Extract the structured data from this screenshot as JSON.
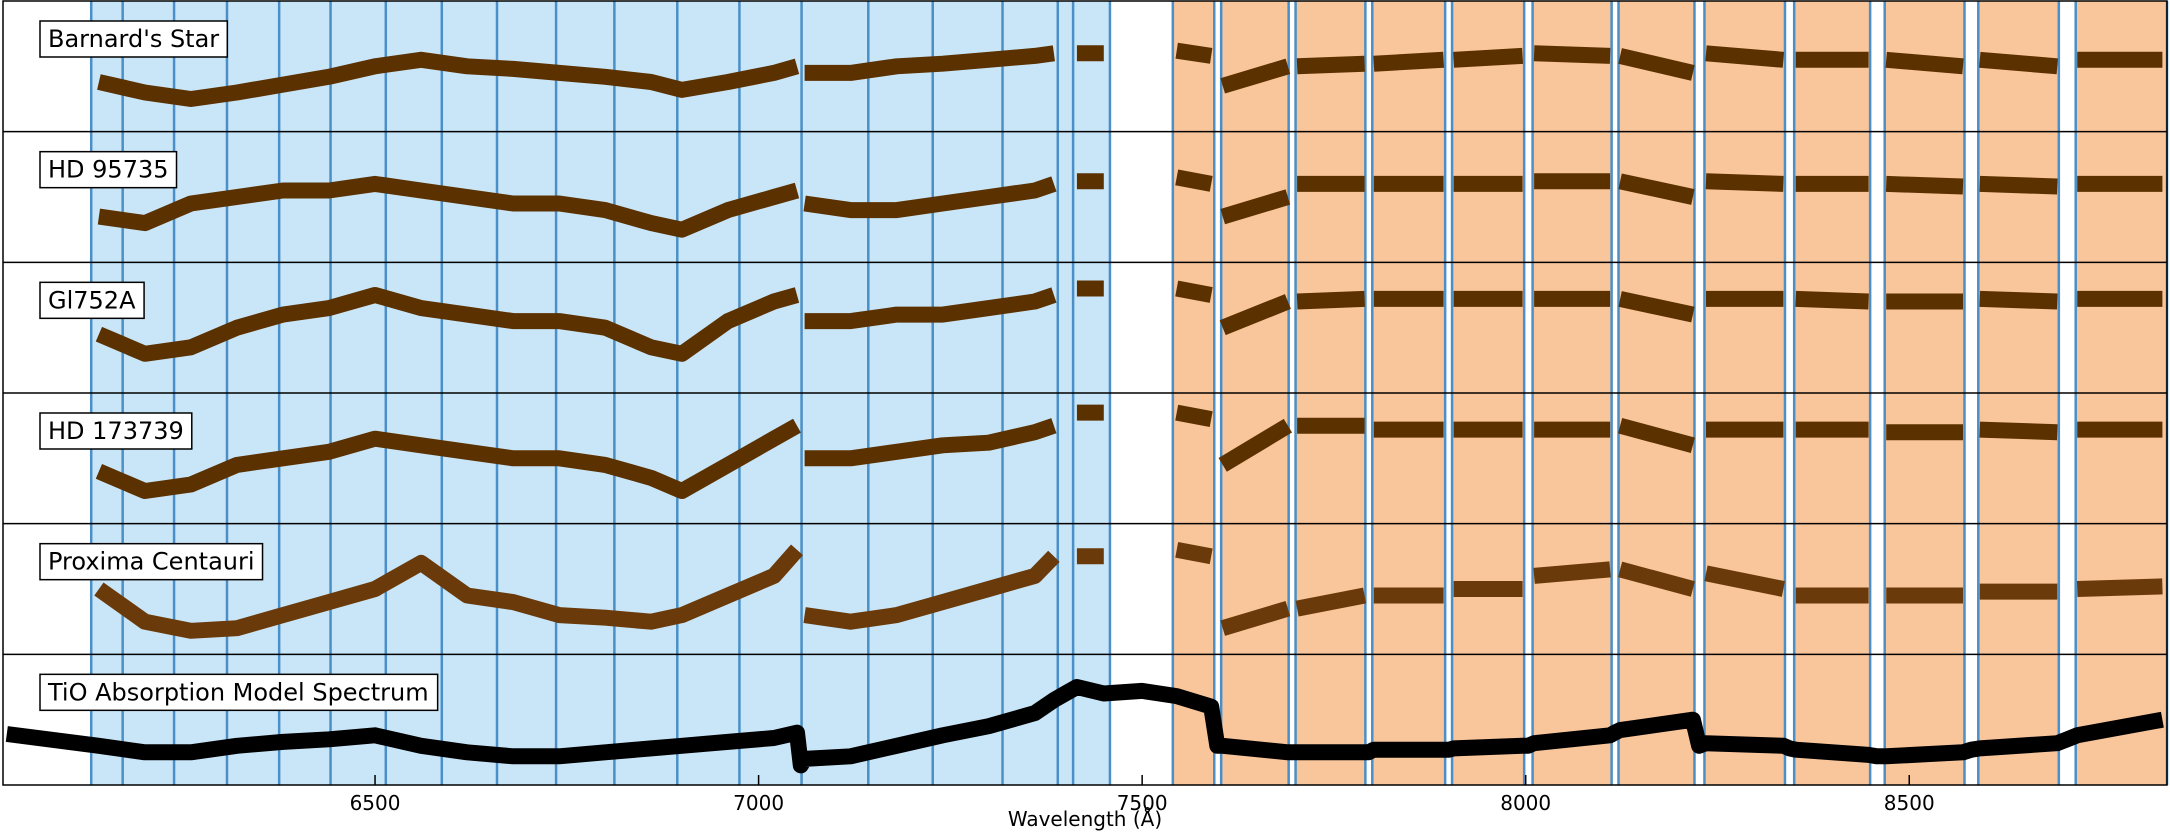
{
  "chart_data": {
    "type": "line",
    "x_label": "Wavelength (Å)",
    "xlim": [
      6015,
      8836
    ],
    "xticks": [
      6500,
      7000,
      7500,
      8000,
      8500
    ],
    "ylim": [
      0,
      1
    ],
    "blue_region": [
      6130,
      7458
    ],
    "blue_color": "#c9e6f8",
    "edge_color": "#4a8fc7",
    "blue_edges": [
      6130,
      6171,
      6238,
      6307,
      6375,
      6442,
      6514,
      6587,
      6659,
      6736,
      6812,
      6894,
      6975,
      7056,
      7143,
      7227,
      7318,
      7390,
      7410,
      7458
    ],
    "orange_color": "#f9c59b",
    "orange_regions": [
      [
        7540,
        7594
      ],
      [
        7603,
        7691
      ],
      [
        7700,
        7791
      ],
      [
        7800,
        7895
      ],
      [
        7904,
        7998
      ],
      [
        8009,
        8112
      ],
      [
        8121,
        8220
      ],
      [
        8233,
        8338
      ],
      [
        8350,
        8449
      ],
      [
        8468,
        8572
      ],
      [
        8590,
        8695
      ],
      [
        8717,
        8836
      ]
    ],
    "x": [
      6020,
      6140,
      6200,
      6260,
      6320,
      6380,
      6440,
      6500,
      6560,
      6620,
      6680,
      6740,
      6800,
      6860,
      6900,
      6960,
      7020,
      7050,
      7055,
      7060,
      7120,
      7180,
      7240,
      7300,
      7360,
      7385,
      7400,
      7415,
      7450,
      7500,
      7545,
      7590,
      7598,
      7605,
      7690,
      7695,
      7702,
      7790,
      7795,
      7802,
      7893,
      7900,
      7906,
      7996,
      8003,
      8011,
      8110,
      8116,
      8123,
      8218,
      8226,
      8235,
      8336,
      8344,
      8352,
      8447,
      8458,
      8470,
      8570,
      8581,
      8592,
      8693,
      8706,
      8719,
      8830
    ],
    "series": [
      {
        "name": "Barnard's Star",
        "color": "#5c3100",
        "values": [
          null,
          0.38,
          0.3,
          0.25,
          0.3,
          0.36,
          0.42,
          0.5,
          0.55,
          0.5,
          0.48,
          0.45,
          0.42,
          0.38,
          0.32,
          0.38,
          0.45,
          0.5,
          null,
          0.45,
          0.45,
          0.5,
          0.52,
          0.55,
          0.58,
          0.6,
          null,
          0.6,
          0.6,
          null,
          0.62,
          0.58,
          null,
          0.35,
          0.5,
          null,
          0.5,
          0.52,
          null,
          0.52,
          0.55,
          null,
          0.55,
          0.58,
          null,
          0.6,
          0.58,
          null,
          0.58,
          0.45,
          null,
          0.6,
          0.55,
          null,
          0.55,
          0.55,
          null,
          0.55,
          0.5,
          null,
          0.55,
          0.5,
          null,
          0.55,
          0.55
        ]
      },
      {
        "name": "HD 95735",
        "color": "#5c3100",
        "values": [
          null,
          0.35,
          0.3,
          0.45,
          0.5,
          0.55,
          0.55,
          0.6,
          0.55,
          0.5,
          0.45,
          0.45,
          0.4,
          0.3,
          0.25,
          0.4,
          0.5,
          0.55,
          null,
          0.45,
          0.4,
          0.4,
          0.45,
          0.5,
          0.55,
          0.6,
          null,
          0.62,
          0.62,
          null,
          0.65,
          0.6,
          null,
          0.35,
          0.5,
          null,
          0.6,
          0.6,
          null,
          0.6,
          0.6,
          null,
          0.6,
          0.6,
          null,
          0.62,
          0.62,
          null,
          0.62,
          0.5,
          null,
          0.62,
          0.6,
          null,
          0.6,
          0.6,
          null,
          0.6,
          0.58,
          null,
          0.6,
          0.58,
          null,
          0.6,
          0.6
        ]
      },
      {
        "name": "Gl752A",
        "color": "#5c3100",
        "values": [
          null,
          0.45,
          0.3,
          0.35,
          0.5,
          0.6,
          0.65,
          0.75,
          0.65,
          0.6,
          0.55,
          0.55,
          0.5,
          0.35,
          0.3,
          0.55,
          0.7,
          0.75,
          null,
          0.55,
          0.55,
          0.6,
          0.6,
          0.65,
          0.7,
          0.75,
          null,
          0.8,
          0.8,
          null,
          0.8,
          0.75,
          null,
          0.5,
          0.7,
          null,
          0.7,
          0.72,
          null,
          0.72,
          0.72,
          null,
          0.72,
          0.72,
          null,
          0.72,
          0.72,
          null,
          0.72,
          0.6,
          null,
          0.72,
          0.72,
          null,
          0.72,
          0.7,
          null,
          0.7,
          0.7,
          null,
          0.72,
          0.7,
          null,
          0.72,
          0.72
        ]
      },
      {
        "name": "HD 173739",
        "color": "#5c3100",
        "values": [
          null,
          0.4,
          0.25,
          0.3,
          0.45,
          0.5,
          0.55,
          0.65,
          0.6,
          0.55,
          0.5,
          0.5,
          0.45,
          0.35,
          0.25,
          0.45,
          0.65,
          0.75,
          null,
          0.5,
          0.5,
          0.55,
          0.6,
          0.62,
          0.7,
          0.75,
          null,
          0.85,
          0.85,
          null,
          0.85,
          0.8,
          null,
          0.45,
          0.75,
          null,
          0.75,
          0.75,
          null,
          0.72,
          0.72,
          null,
          0.72,
          0.72,
          null,
          0.72,
          0.72,
          null,
          0.75,
          0.6,
          null,
          0.72,
          0.72,
          null,
          0.72,
          0.72,
          null,
          0.7,
          0.7,
          null,
          0.72,
          0.7,
          null,
          0.72,
          0.72
        ]
      },
      {
        "name": "Proxima Centauri",
        "color": "#6b3a0a",
        "values": [
          null,
          0.5,
          0.25,
          0.18,
          0.2,
          0.3,
          0.4,
          0.5,
          0.7,
          0.45,
          0.4,
          0.3,
          0.28,
          0.25,
          0.3,
          0.45,
          0.6,
          0.8,
          null,
          0.3,
          0.25,
          0.3,
          0.4,
          0.5,
          0.6,
          0.75,
          null,
          0.75,
          0.75,
          null,
          0.8,
          0.75,
          null,
          0.2,
          0.35,
          null,
          0.35,
          0.45,
          null,
          0.45,
          0.45,
          null,
          0.5,
          0.5,
          null,
          0.6,
          0.65,
          null,
          0.65,
          0.5,
          null,
          0.62,
          0.5,
          null,
          0.45,
          0.45,
          null,
          0.45,
          0.45,
          null,
          0.48,
          0.48,
          null,
          0.5,
          0.52
        ]
      },
      {
        "name": "TiO Absorption Model Spectrum",
        "color": "#000000",
        "values": [
          0.39,
          0.3,
          0.25,
          0.25,
          0.3,
          0.33,
          0.35,
          0.38,
          0.3,
          0.25,
          0.22,
          0.22,
          0.25,
          0.28,
          0.3,
          0.33,
          0.36,
          0.4,
          0.15,
          0.2,
          0.22,
          0.3,
          0.38,
          0.45,
          0.55,
          0.65,
          0.7,
          0.75,
          0.7,
          0.72,
          0.68,
          0.6,
          0.3,
          0.3,
          0.25,
          0.25,
          0.25,
          0.25,
          0.25,
          0.27,
          0.27,
          0.27,
          0.28,
          0.3,
          0.3,
          0.32,
          0.38,
          0.4,
          0.42,
          0.5,
          0.3,
          0.32,
          0.3,
          0.28,
          0.27,
          0.23,
          0.22,
          0.22,
          0.25,
          0.27,
          0.28,
          0.32,
          0.35,
          0.38,
          0.5
        ]
      }
    ]
  }
}
